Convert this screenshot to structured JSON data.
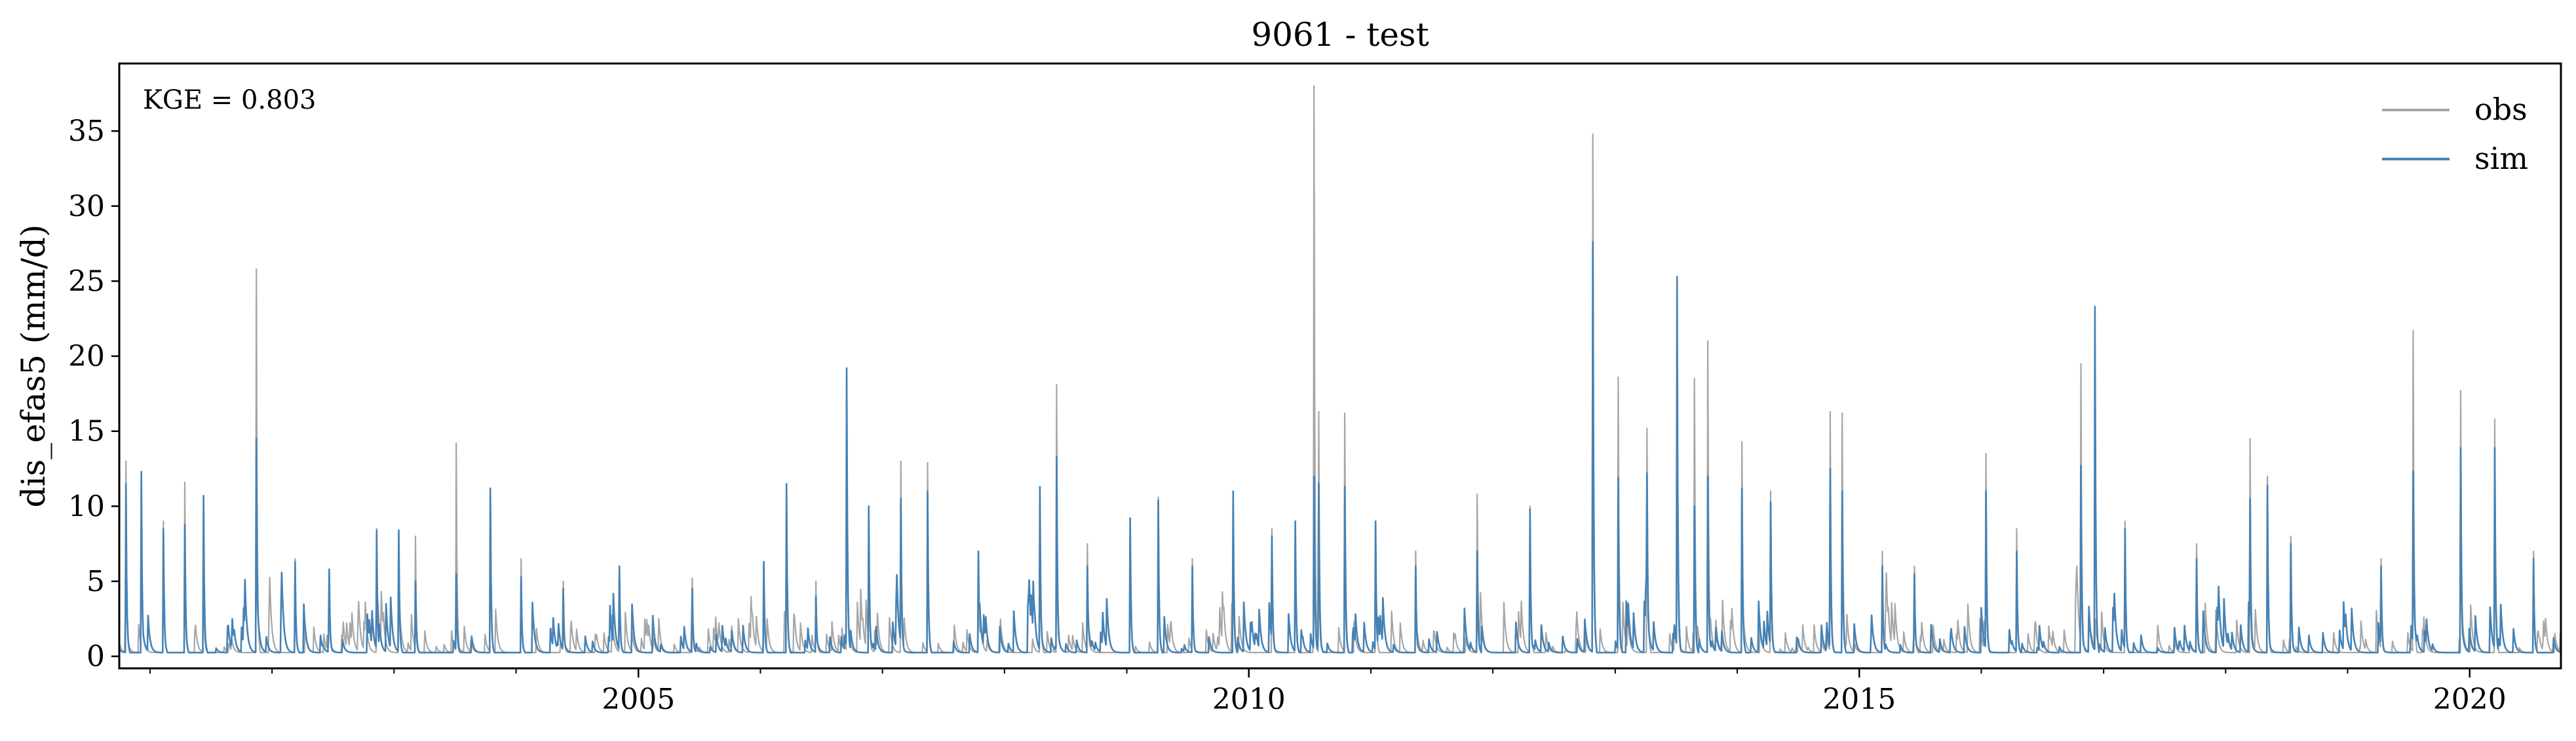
{
  "chart_data": {
    "type": "line",
    "title": "9061 - test",
    "xlabel": "",
    "ylabel": "dis_efas5 (mm/d)",
    "annotation": "KGE = 0.803",
    "x_tick_labels": [
      "2005",
      "2010",
      "2015",
      "2020"
    ],
    "y_tick_labels": [
      "0",
      "5",
      "10",
      "15",
      "20",
      "25",
      "30",
      "35"
    ],
    "xlim": [
      "2000-10-01",
      "2020-09-30"
    ],
    "ylim": [
      -0.8,
      39.5
    ],
    "grid": false,
    "legend_position": "top-right",
    "series": [
      {
        "name": "obs",
        "color": "#a6a6a6",
        "peaks": [
          [
            "2000-10-20",
            13.0
          ],
          [
            "2000-12-05",
            10.0
          ],
          [
            "2001-02-10",
            9.0
          ],
          [
            "2001-04-15",
            11.6
          ],
          [
            "2001-06-10",
            5.5
          ],
          [
            "2001-11-15",
            25.8
          ],
          [
            "2002-03-10",
            6.5
          ],
          [
            "2002-06-20",
            5.0
          ],
          [
            "2002-11-10",
            8.5
          ],
          [
            "2003-01-15",
            8.3
          ],
          [
            "2003-03-05",
            8.0
          ],
          [
            "2003-07-05",
            14.2
          ],
          [
            "2003-10-15",
            11.1
          ],
          [
            "2004-01-15",
            6.5
          ],
          [
            "2004-05-20",
            5.0
          ],
          [
            "2004-11-05",
            6.0
          ],
          [
            "2005-06-10",
            5.2
          ],
          [
            "2006-01-10",
            6.2
          ],
          [
            "2006-03-20",
            11.3
          ],
          [
            "2006-06-15",
            5.0
          ],
          [
            "2006-09-15",
            19.0
          ],
          [
            "2006-11-20",
            8.0
          ],
          [
            "2007-02-25",
            13.0
          ],
          [
            "2007-05-15",
            12.9
          ],
          [
            "2007-10-15",
            7.0
          ],
          [
            "2008-04-15",
            11.0
          ],
          [
            "2008-06-05",
            18.1
          ],
          [
            "2008-09-05",
            7.5
          ],
          [
            "2009-01-10",
            9.0
          ],
          [
            "2009-04-05",
            10.6
          ],
          [
            "2009-07-15",
            6.5
          ],
          [
            "2009-11-15",
            10.0
          ],
          [
            "2010-03-10",
            8.5
          ],
          [
            "2010-05-20",
            7.0
          ],
          [
            "2010-07-15",
            38.0
          ],
          [
            "2010-07-28",
            16.3
          ],
          [
            "2010-10-15",
            16.2
          ],
          [
            "2011-01-15",
            9.0
          ],
          [
            "2011-05-15",
            7.0
          ],
          [
            "2011-11-15",
            10.8
          ],
          [
            "2012-04-20",
            10.0
          ],
          [
            "2012-10-25",
            34.8
          ],
          [
            "2013-01-10",
            18.6
          ],
          [
            "2013-04-05",
            15.2
          ],
          [
            "2013-07-05",
            15.8
          ],
          [
            "2013-08-25",
            18.5
          ],
          [
            "2013-10-05",
            21.0
          ],
          [
            "2014-01-15",
            14.3
          ],
          [
            "2014-04-10",
            11.0
          ],
          [
            "2014-10-05",
            16.3
          ],
          [
            "2014-11-10",
            16.2
          ],
          [
            "2015-03-10",
            7.0
          ],
          [
            "2015-06-15",
            6.0
          ],
          [
            "2016-01-15",
            13.5
          ],
          [
            "2016-04-15",
            8.5
          ],
          [
            "2016-10-25",
            19.5
          ],
          [
            "2017-03-05",
            9.0
          ],
          [
            "2017-10-05",
            7.5
          ],
          [
            "2018-03-15",
            14.5
          ],
          [
            "2018-05-05",
            12.0
          ],
          [
            "2018-07-15",
            8.0
          ],
          [
            "2019-04-10",
            6.5
          ],
          [
            "2019-07-15",
            21.7
          ],
          [
            "2019-12-05",
            17.7
          ],
          [
            "2020-03-15",
            15.8
          ],
          [
            "2020-07-10",
            7.0
          ]
        ]
      },
      {
        "name": "sim",
        "color": "#4682b4",
        "peaks": [
          [
            "2000-10-20",
            11.5
          ],
          [
            "2000-12-05",
            12.3
          ],
          [
            "2001-02-10",
            8.5
          ],
          [
            "2001-04-15",
            8.8
          ],
          [
            "2001-06-10",
            10.7
          ],
          [
            "2001-11-15",
            14.5
          ],
          [
            "2002-03-10",
            6.3
          ],
          [
            "2002-06-20",
            5.8
          ],
          [
            "2002-11-10",
            8.4
          ],
          [
            "2003-01-15",
            8.4
          ],
          [
            "2003-03-05",
            5.0
          ],
          [
            "2003-07-05",
            5.5
          ],
          [
            "2003-10-15",
            11.2
          ],
          [
            "2004-01-15",
            5.3
          ],
          [
            "2004-05-20",
            4.5
          ],
          [
            "2004-11-05",
            6.0
          ],
          [
            "2005-06-10",
            4.5
          ],
          [
            "2006-01-10",
            6.3
          ],
          [
            "2006-03-20",
            11.5
          ],
          [
            "2006-06-15",
            4.0
          ],
          [
            "2006-09-15",
            19.2
          ],
          [
            "2006-11-20",
            10.0
          ],
          [
            "2007-02-25",
            10.5
          ],
          [
            "2007-05-15",
            11.0
          ],
          [
            "2007-10-15",
            7.0
          ],
          [
            "2008-04-15",
            11.3
          ],
          [
            "2008-06-05",
            13.3
          ],
          [
            "2008-09-05",
            6.0
          ],
          [
            "2009-01-10",
            9.2
          ],
          [
            "2009-04-05",
            10.4
          ],
          [
            "2009-07-15",
            6.0
          ],
          [
            "2009-11-15",
            11.0
          ],
          [
            "2010-03-10",
            8.0
          ],
          [
            "2010-05-20",
            9.0
          ],
          [
            "2010-07-15",
            12.0
          ],
          [
            "2010-07-28",
            11.5
          ],
          [
            "2010-10-15",
            11.3
          ],
          [
            "2011-01-15",
            9.0
          ],
          [
            "2011-05-15",
            6.0
          ],
          [
            "2011-11-15",
            7.0
          ],
          [
            "2012-04-20",
            9.8
          ],
          [
            "2012-10-25",
            27.6
          ],
          [
            "2013-01-10",
            11.9
          ],
          [
            "2013-04-05",
            12.2
          ],
          [
            "2013-07-05",
            25.3
          ],
          [
            "2013-08-25",
            10.0
          ],
          [
            "2013-10-05",
            12.0
          ],
          [
            "2014-01-15",
            11.2
          ],
          [
            "2014-04-10",
            10.3
          ],
          [
            "2014-10-05",
            12.5
          ],
          [
            "2014-11-10",
            11.0
          ],
          [
            "2015-03-10",
            6.0
          ],
          [
            "2015-06-15",
            5.5
          ],
          [
            "2016-01-15",
            11.0
          ],
          [
            "2016-04-15",
            7.0
          ],
          [
            "2016-10-25",
            12.7
          ],
          [
            "2016-12-05",
            23.3
          ],
          [
            "2017-03-05",
            8.5
          ],
          [
            "2017-10-05",
            6.5
          ],
          [
            "2018-03-15",
            10.5
          ],
          [
            "2018-05-05",
            11.4
          ],
          [
            "2018-07-15",
            7.5
          ],
          [
            "2019-04-10",
            6.0
          ],
          [
            "2019-07-15",
            12.3
          ],
          [
            "2019-12-05",
            13.9
          ],
          [
            "2020-03-15",
            13.9
          ],
          [
            "2020-07-10",
            6.5
          ]
        ]
      }
    ]
  }
}
